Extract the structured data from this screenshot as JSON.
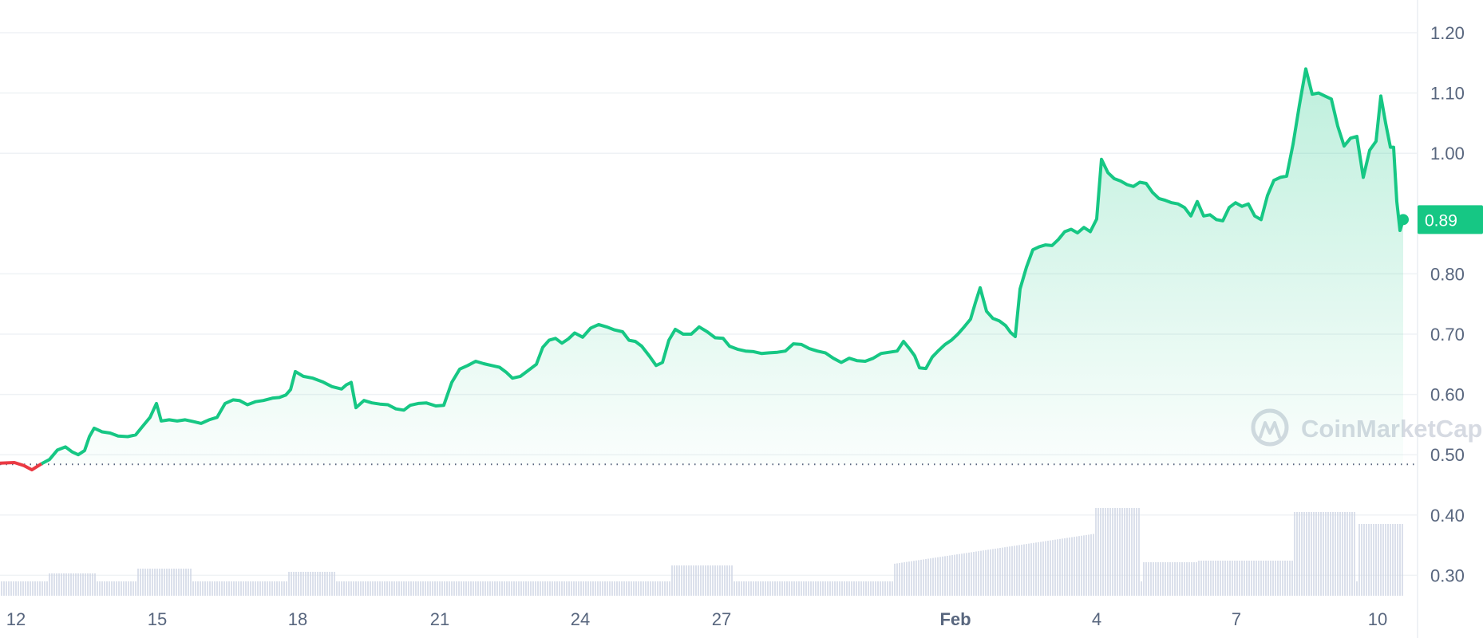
{
  "chart_data": {
    "type": "area",
    "y_ticks": [
      0.3,
      0.4,
      0.5,
      0.6,
      0.7,
      0.8,
      1.0,
      1.1,
      1.2
    ],
    "ylim": [
      0.27,
      1.23
    ],
    "x_ticks": [
      "12",
      "15",
      "18",
      "21",
      "24",
      "27",
      "Feb",
      "4",
      "7",
      "10"
    ],
    "current_price": 0.89,
    "current_price_label": "0.89",
    "baseline_price": 0.484,
    "grid": true,
    "watermark": "CoinMarketCap",
    "line_color_up": "#16c784",
    "line_color_down": "#ea3943",
    "volume_color": "#cfd6e4",
    "price_series": {
      "x": [
        0,
        0.3,
        0.6,
        0.9,
        1.1,
        1.3,
        1.5,
        1.7,
        2.0,
        2.4,
        2.8,
        3.2,
        3.6,
        4.0,
        4.4,
        4.8,
        5.2,
        5.6,
        6.0,
        6.4,
        6.8,
        7.2,
        7.6,
        8.0,
        8.4,
        8.8,
        9.0,
        9.2,
        9.5,
        9.8,
        10.2,
        10.6,
        11.0,
        11.4,
        11.8,
        12.2,
        12.6,
        12.9,
        13.2,
        13.5,
        13.8,
        14.2,
        14.6,
        14.9,
        15.2,
        15.5,
        15.8,
        16.2,
        16.6,
        17.0,
        17.4,
        17.8,
        18.2,
        18.6,
        19.0,
        19.4,
        19.8,
        20.2,
        20.6,
        21.0,
        21.4,
        21.8,
        22.2,
        22.6,
        23.0,
        23.4,
        23.8,
        24.2,
        24.6,
        25.0,
        25.4,
        25.8,
        26.2,
        26.6,
        27.0,
        27.4,
        27.8,
        28.2,
        28.6,
        29.0,
        29.4,
        29.8,
        30.2,
        30.6,
        31.0,
        31.4,
        31.8,
        32.2,
        32.6,
        33.0,
        33.4,
        33.8,
        34.2,
        34.6,
        35.0,
        35.4,
        35.8,
        36.2,
        36.6,
        37.0,
        37.4,
        37.8,
        38.2,
        38.6,
        39.0,
        39.4,
        39.8,
        40.2,
        40.6,
        41.0,
        41.3,
        41.6,
        41.9,
        42.2,
        42.5,
        42.9,
        43.3,
        43.6,
        44.0,
        44.4,
        44.8,
        45.2,
        45.6,
        46.0,
        46.4,
        46.8,
        47.2,
        47.6,
        48.0,
        48.3,
        48.6,
        48.9,
        49.2,
        49.5,
        49.8,
        50.2,
        50.6,
        51.0,
        51.4,
        51.8,
        52.2,
        52.6,
        53.0,
        53.4,
        53.8,
        54.2,
        54.6,
        55.0,
        55.4,
        55.8,
        56.2,
        56.6,
        57.0,
        57.4,
        57.8,
        58.2,
        58.6,
        59.0,
        59.4,
        59.8,
        60.2,
        60.6,
        61.0,
        61.4,
        61.8,
        62.2,
        62.6,
        63.0,
        63.4,
        63.8,
        64.2,
        64.6,
        65.0,
        65.4,
        65.8,
        66.2,
        66.6,
        67.0,
        67.4,
        67.8,
        68.2,
        68.6,
        69.0,
        69.4,
        69.8,
        70.2,
        70.6,
        71.0,
        71.4,
        71.8,
        72.2,
        72.6,
        73.0,
        73.4,
        73.8,
        74.2,
        74.6,
        75.0,
        75.4,
        75.8,
        76.2,
        76.6,
        77.0,
        77.4,
        77.8,
        78.2,
        78.6,
        79.0,
        79.4,
        79.8,
        80.2,
        80.6,
        81.0,
        81.4,
        81.8,
        82.2,
        82.6,
        83.0,
        83.4,
        83.8,
        84.2,
        84.6,
        85.0,
        85.4,
        85.8,
        86.2,
        86.6,
        87.0,
        87.4,
        87.8,
        88.2,
        88.6,
        89.0,
        89.4,
        89.8,
        90.2,
        90.6,
        91.0,
        91.4,
        91.8,
        92.2,
        92.6,
        93.0,
        93.4,
        93.8,
        94.2,
        94.6,
        95.0,
        95.4,
        95.8,
        96.2,
        96.6,
        97.0,
        97.4,
        97.8,
        98.2,
        98.6,
        99.0,
        99.4,
        99.8,
        100.2,
        100.6,
        101.0,
        101.4,
        101.8,
        102.2,
        102.6,
        103.0,
        103.4,
        103.8,
        104.2,
        104.6,
        105.0,
        105.4,
        105.8,
        106.2,
        106.6,
        107.0,
        107.4,
        107.8,
        108.2,
        108.6,
        109.0,
        109.4,
        109.8,
        110.2,
        110.6,
        111.0,
        111.4,
        111.8,
        112.2,
        112.6,
        113.0,
        113.4,
        113.8,
        114.2,
        114.6,
        115.0,
        115.4,
        115.8,
        116.2,
        116.6,
        117.0,
        117.4,
        117.8,
        118.2,
        118.6,
        119.0,
        119.4,
        119.8,
        120.2,
        120.6,
        121.0,
        121.4,
        121.8,
        122.2,
        122.6,
        123.0,
        123.4,
        123.8,
        124.2,
        124.6,
        125.0,
        125.4,
        125.8,
        126.2,
        126.6,
        127.0,
        127.4,
        127.8,
        128.2,
        128.6,
        129.0,
        129.4,
        129.8,
        130.2,
        130.6,
        131.0,
        131.4,
        131.8,
        132.2,
        132.6,
        133.0,
        133.4,
        133.8,
        134.2,
        134.6,
        135.0,
        135.4,
        135.8,
        136.2,
        136.6,
        137.0,
        137.4,
        137.8,
        138.2,
        138.6,
        139.0,
        139.4,
        139.8,
        140.2,
        140.6,
        141.0,
        141.4,
        141.8,
        142.2,
        142.6,
        143.0,
        143.4,
        143.8,
        144.2,
        144.6,
        145.0,
        145.4,
        145.8,
        146.2,
        146.6,
        147.0,
        147.4,
        147.8,
        148.2,
        148.6,
        149.0,
        149.4,
        149.8,
        150.2,
        150.6,
        151.0,
        151.4,
        151.8,
        152.2,
        152.6,
        153.0,
        153.4,
        153.8,
        154.2,
        154.6,
        155.0,
        155.4,
        155.8,
        156.2,
        156.6,
        157.0,
        157.4,
        157.8,
        158.2,
        158.6,
        159.0,
        159.4,
        159.8,
        160.2,
        160.6,
        161.0,
        161.4,
        161.8,
        162.2,
        162.6,
        163.0,
        163.4,
        163.8,
        164.2,
        164.6,
        165.0,
        165.4,
        165.8,
        166.2,
        166.6,
        167.0,
        167.4,
        167.8,
        168.2,
        168.6,
        169.0,
        169.4,
        169.8,
        170.2,
        170.6,
        171.0,
        171.4,
        171.8,
        172.2,
        172.6,
        173.0,
        173.4,
        173.8,
        174.2,
        174.6,
        175.0,
        175.4,
        175.8,
        176.2,
        176.6,
        177.0,
        177.4,
        177.8,
        178.2,
        178.6,
        179.0,
        179.4,
        179.8,
        180.2,
        180.6,
        181.0,
        181.4,
        181.8,
        182.2,
        182.6,
        183.0,
        183.4,
        183.8,
        184.2,
        184.6,
        185.0,
        185.4,
        185.8,
        186.2,
        186.6,
        187.0,
        187.4,
        187.8,
        188.2,
        188.6,
        189.0,
        189.4,
        189.8,
        190.2,
        190.6,
        191.0,
        191.4,
        191.8,
        192.2,
        192.6,
        193.0,
        193.4,
        193.8,
        194.2,
        194.6,
        195.0,
        195.4,
        195.8,
        196.2,
        196.6,
        197.0,
        197.4,
        197.8,
        198.2,
        198.6,
        199.0,
        199.4,
        199.8,
        200.2,
        200.6,
        201.0,
        201.4,
        201.8,
        202.2,
        202.6,
        203.0,
        203.4,
        203.8,
        204.2,
        204.6,
        205.0,
        205.4,
        205.8,
        206.2,
        206.6,
        207.0,
        207.4,
        207.8,
        208.2,
        208.6,
        209.0,
        209.4,
        209.8,
        210.2,
        210.6,
        211.0,
        211.4,
        211.8,
        212.2,
        212.6,
        213.0,
        213.4,
        213.8,
        214.2,
        214.6,
        215.0,
        215.4,
        215.8,
        216.2,
        216.6,
        217.0,
        217.4,
        217.8,
        218.2,
        218.6,
        219.0,
        219.4,
        219.8,
        220.2,
        220.6,
        221.0,
        221.4,
        221.8,
        222.2,
        222.6,
        223.0,
        223.4,
        223.8,
        224.2,
        224.6,
        225.0,
        225.4,
        225.8,
        226.2,
        226.6,
        227.0,
        227.4,
        227.8,
        228.2,
        228.6,
        229.0,
        229.4,
        229.8,
        230.2,
        230.6,
        231.0,
        231.4,
        231.8,
        232.2,
        232.6,
        233.0,
        233.4,
        233.8,
        234.2,
        234.6,
        235.0,
        235.4,
        235.8,
        236.2,
        236.6,
        237.0,
        237.4,
        237.8,
        238.2,
        238.6,
        239.0,
        239.4,
        239.8,
        240.2,
        240.6,
        241.0,
        241.4,
        241.8,
        242.2,
        242.6,
        243.0,
        243.4,
        243.8,
        244.2,
        244.6,
        245.0,
        245.4,
        245.8,
        246.2,
        246.6,
        247.0,
        247.4,
        247.8,
        248.2,
        248.6,
        249.0,
        249.4,
        249.8,
        250.2,
        250.6,
        251.0,
        251.4,
        251.8,
        252.2,
        252.6,
        253.0,
        253.4,
        253.8,
        254.2,
        254.6,
        255.0,
        255.4,
        255.8,
        256.2,
        256.6,
        257.0,
        257.4,
        257.8,
        258.2,
        258.6,
        259.0,
        259.4,
        259.8,
        260.2,
        260.6,
        261.0,
        261.4,
        261.8,
        262.2,
        262.6,
        263.0,
        263.4,
        263.8,
        264.2,
        264.6,
        265.0,
        265.4,
        265.8,
        266.2,
        266.6,
        267.0,
        267.4,
        267.8,
        268.2,
        268.6,
        269.0,
        269.4,
        269.8,
        270.2,
        270.6,
        271.0,
        271.4,
        271.8,
        272.2,
        272.6,
        273.0,
        273.4,
        273.8,
        274.2,
        274.6,
        275.0,
        275.4,
        275.8,
        276.2,
        276.6,
        277.0,
        277.4,
        277.8,
        278.2,
        278.6,
        279.0,
        279.4,
        279.8,
        280.2,
        280.6,
        281.0,
        281.4,
        281.8,
        282.2,
        282.6,
        283.0,
        283.4,
        283.8,
        284.2,
        284.6,
        285.0,
        285.4,
        285.8,
        286.2,
        286.6,
        287.0,
        287.4,
        287.8,
        288.2,
        288.6,
        289.0,
        289.4,
        289.8,
        290.2,
        290.6,
        291.0,
        291.4,
        291.8,
        292.2,
        292.6,
        293.0,
        293.4,
        293.8,
        294.2,
        294.6,
        295.0,
        295.4,
        295.8,
        296.2,
        296.6,
        297.0,
        297.4,
        297.8,
        298.2,
        298.6,
        299.0,
        299.4,
        299.8,
        300.2,
        300.6,
        301.0,
        301.4,
        301.8,
        302.2,
        302.6,
        303.0,
        303.4,
        303.8,
        304.2,
        304.6,
        305.0,
        305.4,
        305.8,
        306.2,
        306.6,
        307.0,
        307.4,
        307.8,
        308.2,
        308.6,
        309.0,
        309.4,
        309.8,
        310.2,
        310.6,
        311.0,
        311.4,
        311.8,
        312.2,
        312.6,
        313.0,
        313.4,
        313.8,
        314.2,
        314.6,
        315.0,
        315.4,
        315.8,
        316.2,
        316.6,
        317.0,
        317.4,
        317.8,
        318.2,
        318.6,
        319.0,
        319.4,
        319.8,
        320.2,
        320.6,
        321.0,
        321.4,
        321.8,
        322.2,
        322.6,
        323.0,
        323.4,
        323.8,
        324.2,
        324.6,
        325.0,
        325.4,
        325.8,
        326.2,
        326.6,
        327.0,
        327.4,
        327.8,
        328.2,
        328.6,
        329.0,
        329.4,
        329.8,
        330.2,
        330.6,
        331.0,
        331.4,
        331.8,
        332.2,
        332.6,
        333.0,
        333.4,
        333.8,
        334.2,
        334.6,
        335.0,
        335.4,
        335.8,
        336.2,
        336.6,
        337.0,
        337.4,
        337.8,
        338.2,
        338.6,
        339.0,
        339.4,
        339.8,
        340.2,
        340.6,
        341.0,
        341.4,
        341.8,
        342.2,
        342.6,
        343.0,
        343.4,
        343.8,
        344.2,
        344.6,
        345.0,
        345.4,
        345.8,
        346.2,
        346.6,
        347.0,
        347.4,
        347.8,
        348.2,
        348.6,
        349.0,
        349.4,
        349.8,
        350.2,
        350.6,
        351.0,
        351.4,
        351.8,
        352.2,
        352.6,
        353.0,
        353.4,
        353.8,
        354.2,
        354.6,
        355.0,
        355.4,
        355.8,
        356.2,
        356.6,
        357.0,
        357.4,
        357.8,
        358.2,
        358.6,
        359.0,
        359.4,
        359.8,
        360.2,
        360.6,
        361.0,
        361.4,
        361.8,
        362.2,
        362.6,
        363.0,
        363.4,
        363.8,
        364.2,
        364.6,
        365.0,
        365.4,
        365.8,
        366.2,
        366.6,
        367.0,
        367.4,
        367.8,
        368.2,
        368.6,
        369.0,
        369.4,
        369.8,
        370.2,
        370.6,
        371.0,
        371.4,
        371.8,
        372.2,
        372.6,
        373.0,
        373.4,
        373.8,
        374.2,
        374.6,
        375.0
      ],
      "y_comment_removed": true
    }
  }
}
